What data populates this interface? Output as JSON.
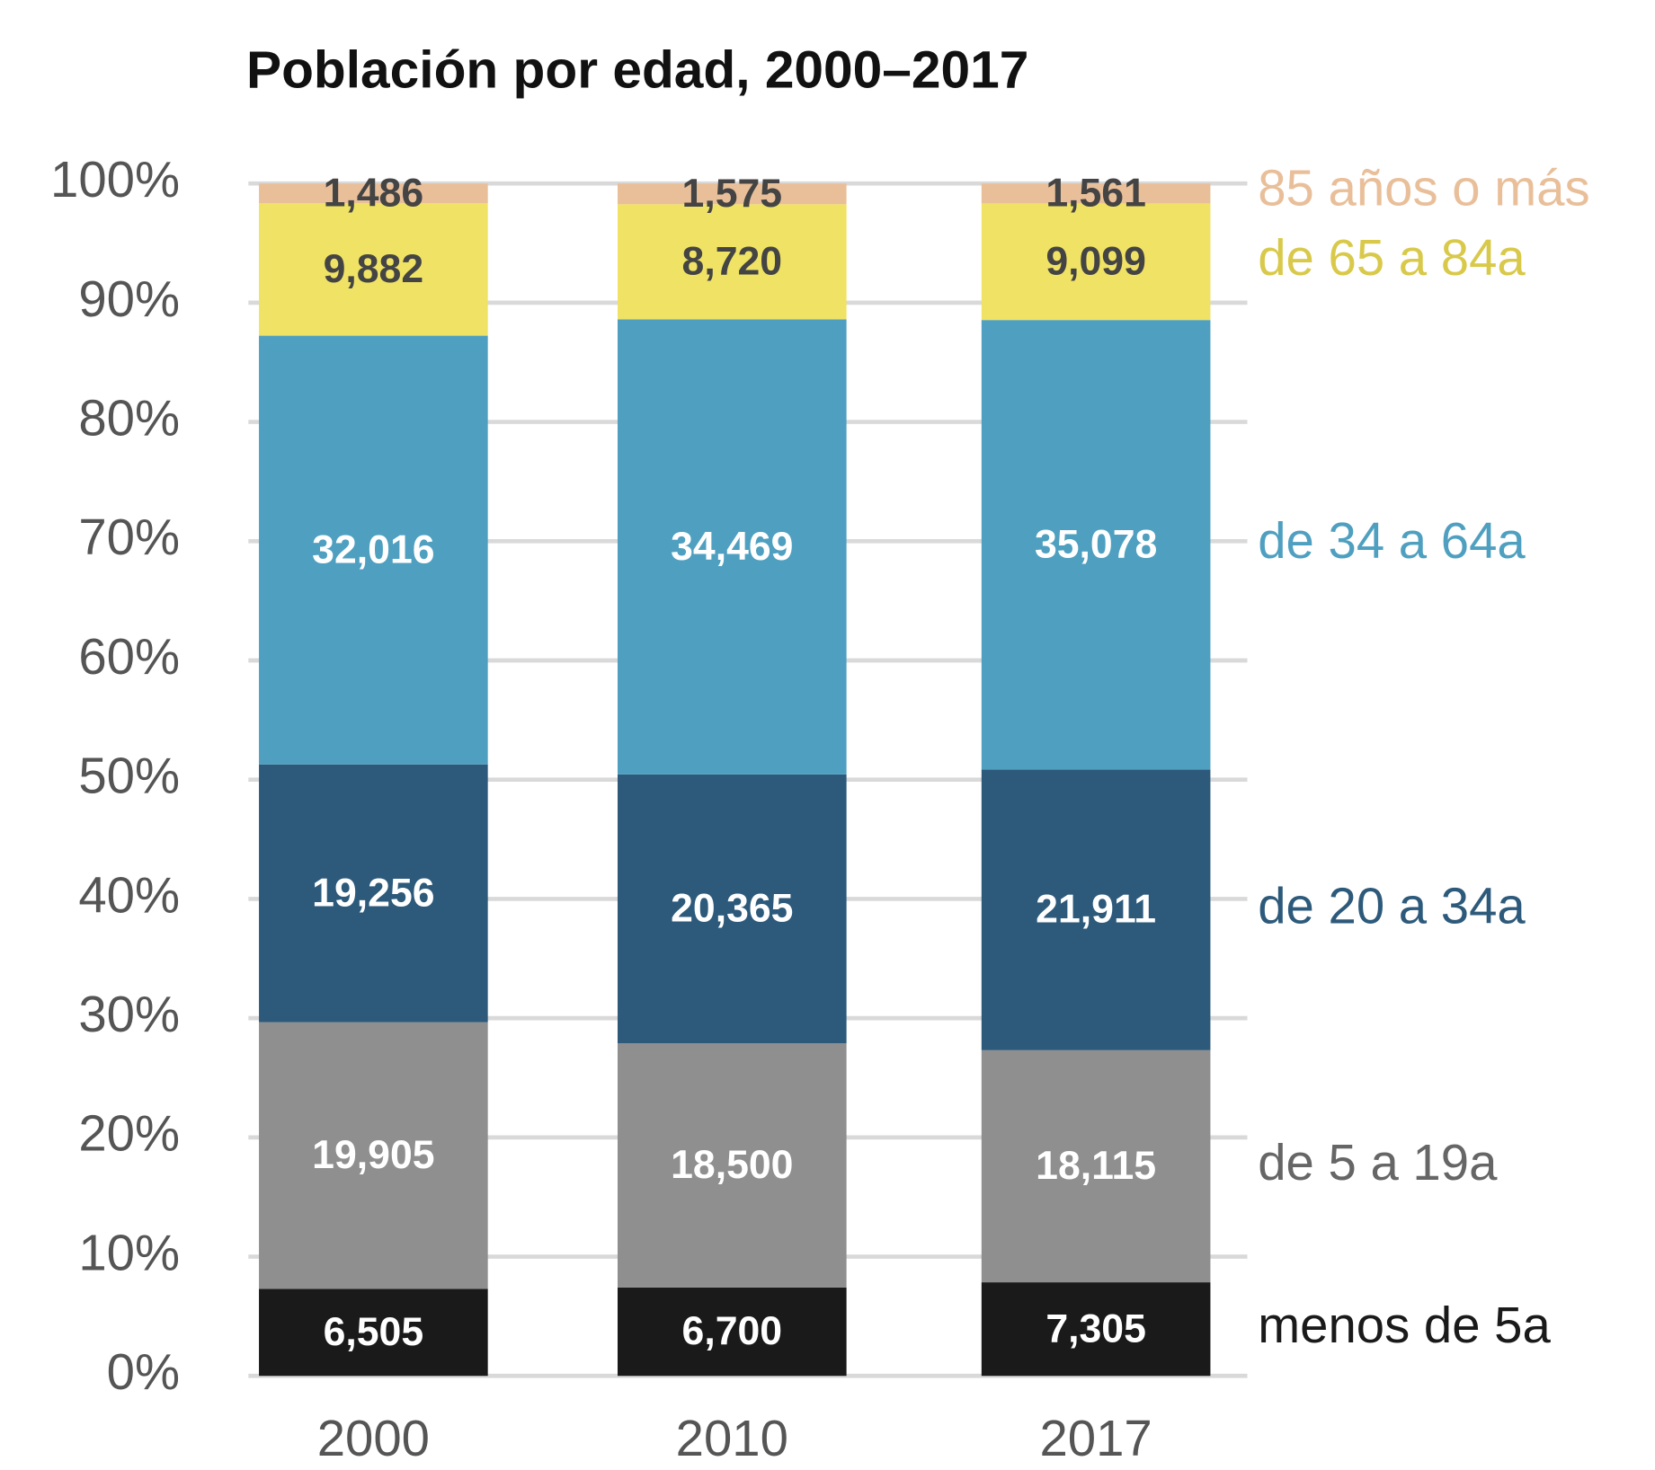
{
  "chart_data": {
    "type": "bar",
    "stacking": "percent",
    "title": "Población por edad, 2000–2017",
    "categories": [
      "2000",
      "2010",
      "2017"
    ],
    "series": [
      {
        "name": "menos de 5a",
        "color": "#1a1a1a",
        "text_color": "#ffffff",
        "legend_color": "#1a1a1a",
        "values": [
          6505,
          6700,
          7305
        ],
        "value_labels": [
          "6,505",
          "6,700",
          "7,305"
        ]
      },
      {
        "name": "de 5 a 19a",
        "color": "#8f8f8f",
        "text_color": "#ffffff",
        "legend_color": "#666666",
        "values": [
          19905,
          18500,
          18115
        ],
        "value_labels": [
          "19,905",
          "18,500",
          "18,115"
        ]
      },
      {
        "name": "de 20 a 34a",
        "color": "#2d5a7b",
        "text_color": "#ffffff",
        "legend_color": "#2d5a7b",
        "values": [
          19256,
          20365,
          21911
        ],
        "value_labels": [
          "19,256",
          "20,365",
          "21,911"
        ]
      },
      {
        "name": "de 34 a 64a",
        "color": "#4fa0c0",
        "text_color": "#ffffff",
        "legend_color": "#4fa0c0",
        "values": [
          32016,
          34469,
          35078
        ],
        "value_labels": [
          "32,016",
          "34,469",
          "35,078"
        ]
      },
      {
        "name": "de 65 a 84a",
        "color": "#f0e264",
        "text_color": "#444444",
        "legend_color": "#d9c94a",
        "values": [
          9882,
          8720,
          9099
        ],
        "value_labels": [
          "9,882",
          "8,720",
          "9,099"
        ]
      },
      {
        "name": "85 años o más",
        "color": "#e9bf9a",
        "text_color": "#444444",
        "legend_color": "#e9bf9a",
        "values": [
          1486,
          1575,
          1561
        ],
        "value_labels": [
          "1,486",
          "1,575",
          "1,561"
        ]
      }
    ],
    "ylim": [
      0,
      100
    ],
    "yticks": [
      {
        "value": 0,
        "label": "0%"
      },
      {
        "value": 10,
        "label": "10%"
      },
      {
        "value": 20,
        "label": "20%"
      },
      {
        "value": 30,
        "label": "30%"
      },
      {
        "value": 40,
        "label": "40%"
      },
      {
        "value": 50,
        "label": "50%"
      },
      {
        "value": 60,
        "label": "60%"
      },
      {
        "value": 70,
        "label": "70%"
      },
      {
        "value": 80,
        "label": "80%"
      },
      {
        "value": 90,
        "label": "90%"
      },
      {
        "value": 100,
        "label": "100%"
      }
    ],
    "grid": true,
    "legend": "right"
  }
}
